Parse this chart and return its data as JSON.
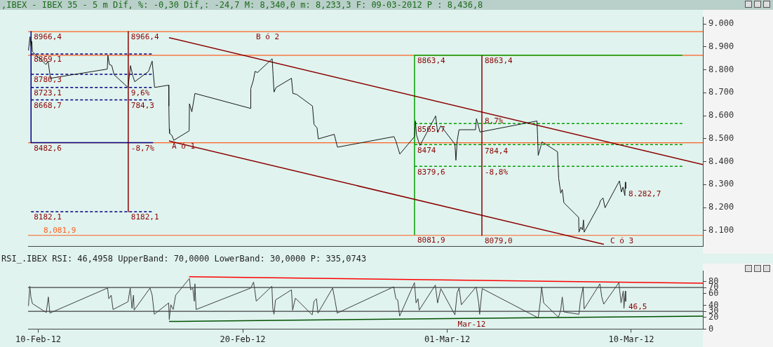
{
  "chart_data": [
    {
      "type": "line",
      "title": ",IBEX - IBEX 35 -  5 m Dif, %: -0,30 Dif,: -24,7 M: 8,340,0 m: 8,233,3 F: 09-03-2012 P : 8,436,8",
      "marker": "none",
      "grid": false,
      "legend": false,
      "tick_labels": "y",
      "xlim": [
        "2012-02-09T12:00",
        "2012-03-13T12:00"
      ],
      "ylim": [
        8030,
        9030
      ],
      "yticks": [
        {
          "value": 8100,
          "label": "8.100"
        },
        {
          "value": 8200,
          "label": "8.200"
        },
        {
          "value": 8300,
          "label": "8.300"
        },
        {
          "value": 8400,
          "label": "8.400"
        },
        {
          "value": 8500,
          "label": "8.500"
        },
        {
          "value": 8600,
          "label": "8.600"
        },
        {
          "value": 8700,
          "label": "8.700"
        },
        {
          "value": 8800,
          "label": "8.800"
        },
        {
          "value": 8900,
          "label": "8.900"
        },
        {
          "value": 9000,
          "label": "9.000"
        }
      ],
      "series": [
        {
          "color": "#1a1a1a",
          "x": [
            "2012-02-09T12:30",
            "2012-02-09T14:15",
            "2012-02-09T15:20",
            "2012-02-09T16:25",
            "2012-02-09T17:05",
            "2012-02-10T09:00",
            "2012-02-10T11:30",
            "2012-02-10T14:15",
            "2012-02-13T09:00",
            "2012-02-13T09:40",
            "2012-02-13T11:30",
            "2012-02-13T14:15",
            "2012-02-13T17:05",
            "2012-02-14T09:20",
            "2012-02-14T12:15",
            "2012-02-14T15:00",
            "2012-02-14T17:10",
            "2012-02-15T09:25",
            "2012-02-15T13:40",
            "2012-02-15T16:30",
            "2012-02-16T09:00",
            "2012-02-16T09:15",
            "2012-02-16T09:45",
            "2012-02-16T10:05",
            "2012-02-16T12:55",
            "2012-02-16T15:00",
            "2012-02-17T09:05",
            "2012-02-17T09:25",
            "2012-02-17T12:15",
            "2012-02-17T15:50",
            "2012-02-20T09:05",
            "2012-02-20T09:25",
            "2012-02-20T12:20",
            "2012-02-20T14:25",
            "2012-02-20T17:15",
            "2012-02-21T10:30",
            "2012-02-21T11:35",
            "2012-02-21T12:40",
            "2012-02-21T15:05",
            "2012-02-22T09:10",
            "2012-02-22T10:50",
            "2012-02-22T15:10",
            "2012-02-23T09:50",
            "2012-02-23T11:40",
            "2012-02-23T15:10",
            "2012-02-23T16:40",
            "2012-02-24T11:20",
            "2012-02-24T15:10",
            "2012-02-27T09:30",
            "2012-02-27T11:45",
            "2012-02-27T16:20",
            "2012-02-28T09:35",
            "2012-02-28T10:40",
            "2012-02-28T11:50",
            "2012-02-28T15:55",
            "2012-02-29T10:25",
            "2012-02-29T12:40",
            "2012-02-29T16:25",
            "2012-03-01T09:00",
            "2012-03-01T10:10",
            "2012-03-01T11:40",
            "2012-03-01T13:50",
            "2012-03-02T09:10",
            "2012-03-02T10:15",
            "2012-03-02T14:25",
            "2012-03-05T09:15",
            "2012-03-05T10:00",
            "2012-03-05T10:45",
            "2012-03-05T15:15",
            "2012-03-06T09:25",
            "2012-03-06T09:45",
            "2012-03-06T10:50",
            "2012-03-06T13:10",
            "2012-03-06T15:00",
            "2012-03-06T16:55",
            "2012-03-07T10:15",
            "2012-03-07T10:35",
            "2012-03-07T12:50",
            "2012-03-07T14:45",
            "2012-03-07T15:55",
            "2012-03-07T16:40",
            "2012-03-08T10:00",
            "2012-03-08T11:55",
            "2012-03-08T14:50",
            "2012-03-08T17:10",
            "2012-03-09T10:05",
            "2012-03-09T12:25",
            "2012-03-09T14:15",
            "2012-03-09T16:30",
            "2012-03-09T17:00",
            "2012-03-09T17:25"
          ],
          "values": [
            8884,
            8944,
            8904,
            8924,
            8879,
            8823,
            8838,
            8763,
            8803,
            8863,
            8823,
            8818,
            8778,
            8723,
            8818,
            8773,
            8748,
            8793,
            8838,
            8723,
            8733,
            8642,
            8542,
            8523,
            8514,
            8493,
            8534,
            8652,
            8617,
            8697,
            8632,
            8718,
            8753,
            8793,
            8788,
            8848,
            8778,
            8703,
            8723,
            8763,
            8697,
            8693,
            8642,
            8562,
            8547,
            8499,
            8519,
            8463,
            8509,
            8489,
            8433,
            8509,
            8577,
            8517,
            8470,
            8599,
            8528,
            8556,
            8476,
            8406,
            8491,
            8539,
            8539,
            8587,
            8529,
            8577,
            8517,
            8427,
            8486,
            8443,
            8411,
            8327,
            8263,
            8279,
            8221,
            8157,
            8093,
            8115,
            8103,
            8146,
            8093,
            8210,
            8231,
            8242,
            8199,
            8316,
            8268,
            8289,
            8252,
            8311,
            8282.7
          ]
        },
        {
          "color": "#8b0000",
          "x": [
            "2012-02-16T09:25",
            "2012-03-13T12:00"
          ],
          "values": [
            8940,
            8387
          ]
        },
        {
          "color": "#8b0000",
          "x": [
            "2012-02-16T09:25",
            "2012-03-08T15:50"
          ],
          "values": [
            8490,
            8040
          ]
        },
        {
          "color": "#000080",
          "line_style": "dashed",
          "x": [
            "2012-02-09T15:30",
            "2012-02-15T14:50"
          ],
          "values": [
            8869.1,
            8869.1
          ]
        },
        {
          "color": "#000080",
          "line_style": "dashed",
          "x": [
            "2012-02-09T15:30",
            "2012-02-15T14:50"
          ],
          "values": [
            8780.3,
            8780.3
          ]
        },
        {
          "color": "#000080",
          "line_style": "dashed",
          "x": [
            "2012-02-09T15:30",
            "2012-02-15T14:50"
          ],
          "values": [
            8723.1,
            8723.1
          ]
        },
        {
          "color": "#000080",
          "line_style": "dashed",
          "x": [
            "2012-02-09T15:30",
            "2012-02-15T14:50"
          ],
          "values": [
            8668.7,
            8668.7
          ]
        },
        {
          "color": "#000080",
          "line_style": "dashed",
          "x": [
            "2012-02-09T15:30",
            "2012-02-15T14:50"
          ],
          "values": [
            8182.1,
            8182.1
          ]
        },
        {
          "color": "#000080",
          "x": [
            "2012-02-09T15:30",
            "2012-02-15T14:50"
          ],
          "values": [
            8482.6,
            8482.6
          ]
        },
        {
          "color": "#000080",
          "x": [
            "2012-02-09T15:30",
            "2012-02-09T15:30"
          ],
          "values": [
            8966.4,
            8482.6
          ]
        },
        {
          "color": "#8b0000",
          "x": [
            "2012-02-14T09:35",
            "2012-02-14T09:35"
          ],
          "values": [
            8966.4,
            8182.1
          ]
        },
        {
          "color": "#00a000",
          "x": [
            "2012-02-28T09:35",
            "2012-02-28T09:35"
          ],
          "values": [
            8863.4,
            8081.9
          ]
        },
        {
          "color": "#00a000",
          "x": [
            "2012-02-28T09:35",
            "2012-03-12T12:00"
          ],
          "values": [
            8863.4,
            8863.4
          ]
        },
        {
          "color": "#00a000",
          "line_style": "dashed",
          "x": [
            "2012-02-28T09:35",
            "2012-03-12T12:00"
          ],
          "values": [
            8565.7,
            8565.7
          ]
        },
        {
          "color": "#00a000",
          "line_style": "dashed",
          "x": [
            "2012-02-28T09:35",
            "2012-03-12T12:00"
          ],
          "values": [
            8474,
            8474
          ]
        },
        {
          "color": "#00a000",
          "line_style": "dashed",
          "x": [
            "2012-02-28T09:35",
            "2012-03-12T12:00"
          ],
          "values": [
            8379.6,
            8379.6
          ]
        },
        {
          "color": "#8b0000",
          "x": [
            "2012-03-02T16:40",
            "2012-03-02T16:40"
          ],
          "values": [
            8863.4,
            8079.0
          ]
        }
      ],
      "ref_lines": [
        {
          "axis": "y",
          "value": 8966.4,
          "label": null,
          "color": "#ff6020"
        },
        {
          "axis": "y",
          "value": 8863.4,
          "label": null,
          "color": "#ff6020"
        },
        {
          "axis": "y",
          "value": 8482.6,
          "label": null,
          "color": "#ff6020"
        },
        {
          "axis": "y",
          "value": 8079.0,
          "label": "8,081,9",
          "color": "#ff6020"
        }
      ],
      "annotations": [
        {
          "text": "8966,4",
          "x": "2012-02-09T15:30",
          "y": 8966.4
        },
        {
          "text": "8869,1",
          "x": "2012-02-09T15:30",
          "y": 8869.1
        },
        {
          "text": "8780,3",
          "x": "2012-02-09T15:30",
          "y": 8780.3
        },
        {
          "text": "8723,1",
          "x": "2012-02-09T15:30",
          "y": 8723.1
        },
        {
          "text": "8668,7",
          "x": "2012-02-09T15:30",
          "y": 8668.7
        },
        {
          "text": "8482,6",
          "x": "2012-02-09T15:30",
          "y": 8482.6
        },
        {
          "text": "8182,1",
          "x": "2012-02-09T15:30",
          "y": 8182.1
        },
        {
          "text": "8966,4",
          "x": "2012-02-14T09:35",
          "y": 8966.4
        },
        {
          "text": "9,6%",
          "x": "2012-02-14T09:35",
          "y": 8723.1
        },
        {
          "text": "784,3",
          "x": "2012-02-14T09:35",
          "y": 8668.7
        },
        {
          "text": "-8,7%",
          "x": "2012-02-14T09:35",
          "y": 8482.6
        },
        {
          "text": "8182,1",
          "x": "2012-02-14T09:35",
          "y": 8182.1
        },
        {
          "text": "8863,4",
          "x": "2012-02-28T09:35",
          "y": 8863.4
        },
        {
          "text": "8565,7",
          "x": "2012-02-28T09:35",
          "y": 8565.7
        },
        {
          "text": "8474",
          "x": "2012-02-28T09:35",
          "y": 8474
        },
        {
          "text": "8379,6",
          "x": "2012-02-28T09:35",
          "y": 8379.6
        },
        {
          "text": "8081,9",
          "x": "2012-02-28T09:35",
          "y": 8081.9
        },
        {
          "text": "8863,4",
          "x": "2012-03-02T16:40",
          "y": 8863.4
        },
        {
          "text": "8,7%",
          "x": "2012-03-02T16:40",
          "y": 8600
        },
        {
          "text": "784,4",
          "x": "2012-03-02T16:40",
          "y": 8470
        },
        {
          "text": "-8,8%",
          "x": "2012-03-02T16:40",
          "y": 8379.6
        },
        {
          "text": "8079,0",
          "x": "2012-03-02T16:40",
          "y": 8079
        },
        {
          "text": "A ó 1",
          "x": "2012-02-16T09:25",
          "y": 8490
        },
        {
          "text": "B ó 2",
          "x": "2012-02-20T12:20",
          "y": 8966.4
        },
        {
          "text": "C ó 3",
          "x": "2012-03-08T20:00",
          "y": 8079.0
        },
        {
          "text": "8.282,7",
          "x": "2012-03-09T17:25",
          "y": 8282.7
        }
      ]
    },
    {
      "type": "line",
      "title": "RSI_.IBEX RSI: 46,4958 UpperBand: 70,0000 LowerBand: 30,0000 P: 335,0743",
      "marker": "none",
      "grid": false,
      "legend": false,
      "xlim": [
        "2012-02-09T12:00",
        "2012-03-13T12:00"
      ],
      "xticks": [
        {
          "value": "2012-02-10",
          "label": "10-Feb-12"
        },
        {
          "value": "2012-02-20",
          "label": "20-Feb-12"
        },
        {
          "value": "2012-03-01",
          "label": "01-Mar-12"
        },
        {
          "value": "2012-03-10",
          "label": "10-Mar-12"
        }
      ],
      "ylim": [
        0,
        98
      ],
      "yticks": [
        0,
        20,
        30,
        40,
        60,
        70,
        80
      ],
      "series": [
        {
          "color": "#404040",
          "x": [
            "2012-02-09T12:30",
            "2012-02-09T14:05",
            "2012-02-09T15:20",
            "2012-02-09T17:05",
            "2012-02-10T09:20",
            "2012-02-10T11:50",
            "2012-02-10T13:35",
            "2012-02-13T09:20",
            "2012-02-13T10:45",
            "2012-02-13T13:35",
            "2012-02-13T15:45",
            "2012-02-14T09:20",
            "2012-02-14T11:55",
            "2012-02-14T14:00",
            "2012-02-14T15:45",
            "2012-02-14T16:30",
            "2012-02-15T11:10",
            "2012-02-15T13:40",
            "2012-02-15T16:10",
            "2012-02-16T09:00",
            "2012-02-16T09:45",
            "2012-02-16T11:35",
            "2012-02-16T14:20",
            "2012-02-16T17:15",
            "2012-02-17T09:25",
            "2012-02-17T10:50",
            "2012-02-17T13:20",
            "2012-02-17T15:05",
            "2012-02-17T15:50",
            "2012-02-17T17:15",
            "2012-02-20T09:25",
            "2012-02-20T12:40",
            "2012-02-20T14:05",
            "2012-02-20T15:50",
            "2012-02-21T10:10",
            "2012-02-21T11:15",
            "2012-02-21T12:40",
            "2012-02-21T14:25",
            "2012-02-22T09:10",
            "2012-02-22T10:30",
            "2012-02-22T13:45",
            "2012-02-23T09:30",
            "2012-02-23T11:40",
            "2012-02-23T14:30",
            "2012-02-23T16:15",
            "2012-02-24T09:30",
            "2012-02-24T12:25",
            "2012-02-24T14:50",
            "2012-02-27T09:10",
            "2012-02-27T11:45",
            "2012-02-27T13:50",
            "2012-02-27T16:10",
            "2012-02-28T09:30",
            "2012-02-28T11:25",
            "2012-02-28T13:40",
            "2012-02-28T15:05",
            "2012-02-29T10:00",
            "2012-02-29T12:40",
            "2012-02-29T16:25",
            "2012-03-01T09:00",
            "2012-03-01T11:40",
            "2012-03-01T13:55",
            "2012-03-01T16:35",
            "2012-03-02T09:55",
            "2012-03-02T12:55",
            "2012-03-02T14:00",
            "2012-03-02T17:00",
            "2012-03-05T10:45",
            "2012-03-05T13:00",
            "2012-03-05T14:50",
            "2012-03-05T17:10",
            "2012-03-06T10:30",
            "2012-03-06T13:10",
            "2012-03-06T15:00",
            "2012-03-06T16:55",
            "2012-03-07T10:35",
            "2012-03-07T12:10",
            "2012-03-07T15:30",
            "2012-03-07T16:40",
            "2012-03-08T11:10",
            "2012-03-08T13:20",
            "2012-03-08T15:40",
            "2012-03-09T09:25",
            "2012-03-09T12:00",
            "2012-03-09T14:35",
            "2012-03-09T15:25",
            "2012-03-09T17:00",
            "2012-03-09T17:25"
          ],
          "values": [
            39,
            72,
            54,
            43,
            28,
            54,
            27,
            69,
            51,
            57,
            33,
            46,
            69,
            35,
            57,
            32,
            69,
            57,
            25,
            44,
            16,
            41,
            33,
            57,
            85,
            66,
            69,
            47,
            76,
            33,
            69,
            79,
            66,
            47,
            72,
            35,
            25,
            49,
            66,
            32,
            52,
            24,
            47,
            51,
            27,
            69,
            47,
            27,
            71,
            51,
            49,
            22,
            78,
            44,
            51,
            32,
            74,
            44,
            68,
            24,
            61,
            69,
            41,
            71,
            44,
            25,
            68,
            19,
            44,
            71,
            44,
            20,
            32,
            54,
            29,
            25,
            47,
            71,
            34,
            76,
            54,
            42,
            78,
            44,
            64,
            35,
            64,
            46.5
          ]
        },
        {
          "color": "#ff0000",
          "x": [
            "2012-02-17T09:00",
            "2012-03-13T12:00"
          ],
          "values": [
            88,
            77
          ]
        },
        {
          "color": "#005000",
          "x": [
            "2012-02-16T09:25",
            "2012-03-13T12:00"
          ],
          "values": [
            13,
            22
          ]
        }
      ],
      "ref_lines": [
        {
          "axis": "y",
          "value": 70,
          "label": null,
          "color": "#404040"
        },
        {
          "axis": "y",
          "value": 30,
          "label": null,
          "color": "#404040"
        }
      ],
      "annotations": [
        {
          "text": "Mar-12",
          "x": "2012-03-01T09:00",
          "y": 17.6
        },
        {
          "text": "46,5",
          "x": "2012-03-09T17:25",
          "y": 46.5
        }
      ]
    }
  ]
}
